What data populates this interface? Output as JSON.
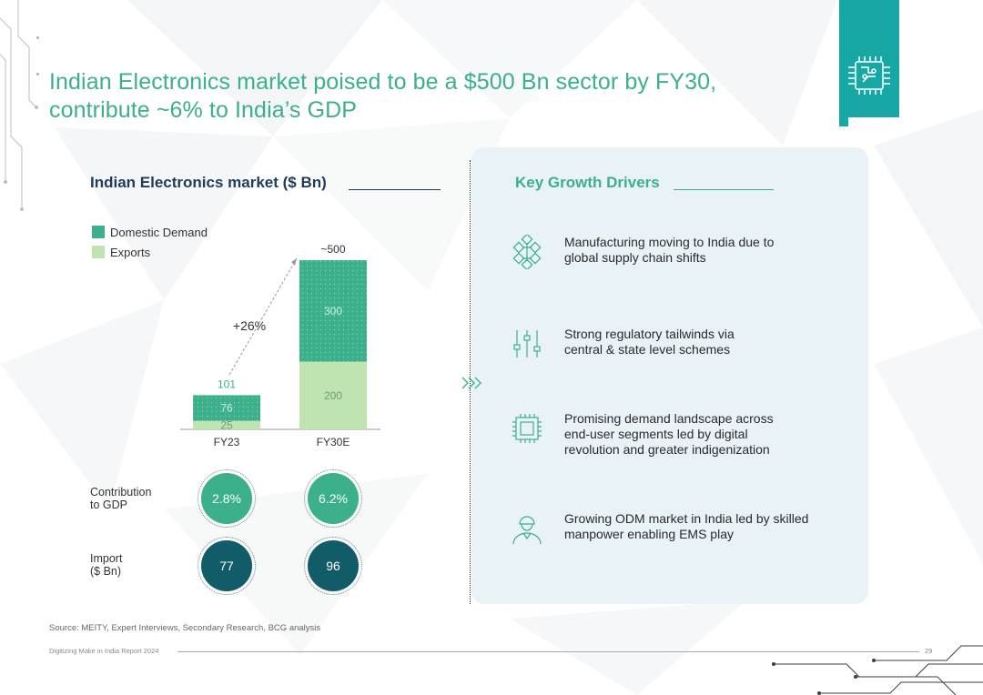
{
  "title": {
    "line1": "Indian Electronics market poised to be a $500 Bn sector by FY30,",
    "line2": "contribute ~6% to India’s GDP"
  },
  "colors": {
    "accent_green": "#3bb08a",
    "exports_green": "#bfe3b1",
    "import_teal": "#125c6a",
    "tab_teal": "#17a8a6",
    "navy": "#1f3b5a",
    "panel_bg": "#e9f2f7"
  },
  "chart_heading": "Indian Electronics market ($ Bn)",
  "chart_data": {
    "type": "bar",
    "stacked": true,
    "title": "Indian Electronics market ($ Bn)",
    "categories": [
      "FY23",
      "FY30E"
    ],
    "series": [
      {
        "name": "Exports",
        "values": [
          25,
          200
        ],
        "labels": [
          "25",
          "200"
        ]
      },
      {
        "name": "Domestic Demand",
        "values": [
          76,
          300
        ],
        "labels": [
          "76",
          "300"
        ]
      }
    ],
    "totals": [
      "101",
      "~500"
    ],
    "total_values": [
      101,
      500
    ],
    "growth_annotation": "+26%",
    "ylim": [
      0,
      500
    ],
    "legend": [
      "Domestic Demand",
      "Exports"
    ],
    "legend_position": "top-left"
  },
  "metrics": {
    "gdp": {
      "label_line1": "Contribution",
      "label_line2": "to GDP",
      "values": [
        "2.8%",
        "6.2%"
      ]
    },
    "import": {
      "label_line1": "Import",
      "label_line2": "($ Bn)",
      "values": [
        "77",
        "96"
      ]
    }
  },
  "drivers": {
    "heading": "Key Growth Drivers",
    "items": [
      {
        "icon": "supply-chain-icon",
        "line1": "Manufacturing moving to India due to",
        "line2": "global supply chain shifts",
        "line3": ""
      },
      {
        "icon": "sliders-icon",
        "line1": "Strong regulatory tailwinds via",
        "line2": "central & state level schemes",
        "line3": ""
      },
      {
        "icon": "chip-icon",
        "line1": "Promising demand landscape across",
        "line2": "end-user segments led by digital",
        "line3": "revolution and greater indigenization"
      },
      {
        "icon": "worker-icon",
        "line1": "Growing ODM market in India led by skilled",
        "line2": "manpower enabling EMS play",
        "line3": ""
      }
    ]
  },
  "source": "Source: MEITY, Expert Interviews, Secondary Research, BCG analysis",
  "footer": {
    "report": "Digitizing Make in India Report 2024",
    "page": "29"
  }
}
